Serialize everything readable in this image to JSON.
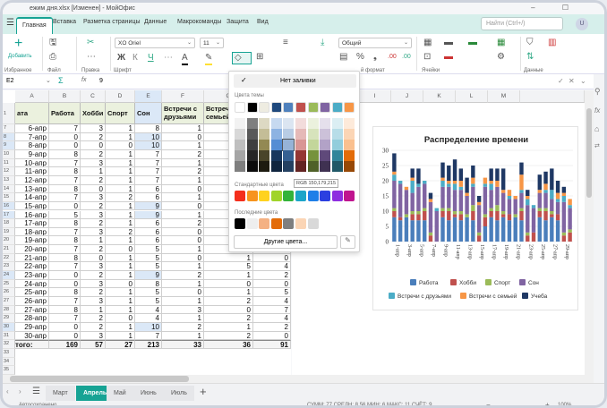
{
  "window": {
    "title": "ежим дня.xlsx [Изменен] - МойОфис",
    "controls": "– ☐"
  },
  "ribbon_tabs": [
    {
      "label": "Главная",
      "active": true
    },
    {
      "label": "Вставка"
    },
    {
      "label": "Разметка страницы"
    },
    {
      "label": "Данные"
    },
    {
      "label": "Макрокоманды"
    },
    {
      "label": "Защита"
    },
    {
      "label": "Вид"
    }
  ],
  "search": {
    "placeholder": "Найти (Ctrl+/)"
  },
  "user": {
    "initial": "U"
  },
  "ribbon": {
    "add_label": "Добавить",
    "groups": [
      "Избранное",
      "Файл",
      "Правка",
      "Шрифт",
      "й формат",
      "Ячейки",
      "Данные"
    ],
    "font_name": "XO Oriel",
    "font_size": "11",
    "number_format": "Общий",
    "bold": "Ж",
    "italic": "К",
    "underline": "Ч",
    "grow": "A⁺",
    "shrink": "A⁻"
  },
  "formula_bar": {
    "cell_ref": "E2",
    "value": "9",
    "sum_icon": "Σ",
    "fx": "fx"
  },
  "sheet": {
    "columns": [
      "A",
      "B",
      "C",
      "D",
      "E",
      "F",
      "G",
      "H"
    ],
    "right_columns": [
      "I",
      "J",
      "K",
      "L",
      "M"
    ],
    "header_row": {
      "num": "1",
      "cells": [
        "ата",
        "Работа",
        "Хобби",
        "Спорт",
        "Сон",
        "Встречи с друзьями",
        "Встречи с семьей"
      ]
    },
    "rows": [
      [
        "7",
        "6-апр",
        "7",
        "3",
        "1",
        "8",
        "1",
        null,
        null
      ],
      [
        "8",
        "7-апр",
        "0",
        "2",
        "1",
        "10",
        "0",
        null,
        null
      ],
      [
        "9",
        "8-апр",
        "0",
        "0",
        "0",
        "10",
        "1",
        null,
        null
      ],
      [
        "10",
        "9-апр",
        "8",
        "2",
        "1",
        "7",
        "2",
        null,
        null
      ],
      [
        "11",
        "10-апр",
        "7",
        "3",
        "1",
        "7",
        "1",
        null,
        null
      ],
      [
        "12",
        "11-апр",
        "8",
        "1",
        "1",
        "7",
        "2",
        null,
        null
      ],
      [
        "13",
        "12-апр",
        "7",
        "2",
        "1",
        "7",
        "1",
        null,
        null
      ],
      [
        "14",
        "13-апр",
        "8",
        "0",
        "1",
        "6",
        "0",
        null,
        null
      ],
      [
        "15",
        "14-апр",
        "7",
        "3",
        "2",
        "6",
        "1",
        null,
        null
      ],
      [
        "16",
        "15-апр",
        "0",
        "2",
        "1",
        "9",
        "0",
        null,
        null
      ],
      [
        "17",
        "16-апр",
        "5",
        "3",
        "1",
        "9",
        "1",
        null,
        null
      ],
      [
        "18",
        "17-апр",
        "8",
        "2",
        "1",
        "6",
        "2",
        null,
        null
      ],
      [
        "19",
        "18-апр",
        "7",
        "3",
        "2",
        "6",
        "0",
        null,
        null
      ],
      [
        "20",
        "19-апр",
        "8",
        "1",
        "1",
        "6",
        "0",
        null,
        null
      ],
      [
        "21",
        "20-апр",
        "7",
        "2",
        "0",
        "5",
        "1",
        null,
        null
      ],
      [
        "22",
        "21-апр",
        "8",
        "0",
        "1",
        "5",
        "0",
        "1",
        "0"
      ],
      [
        "23",
        "22-апр",
        "7",
        "3",
        "1",
        "5",
        "1",
        "5",
        "4"
      ],
      [
        "24",
        "23-апр",
        "0",
        "2",
        "1",
        "9",
        "2",
        "1",
        "2"
      ],
      [
        "25",
        "24-апр",
        "0",
        "3",
        "0",
        "8",
        "1",
        "0",
        "0"
      ],
      [
        "26",
        "25-апр",
        "8",
        "2",
        "1",
        "5",
        "0",
        "1",
        "5"
      ],
      [
        "27",
        "26-апр",
        "7",
        "3",
        "1",
        "5",
        "1",
        "2",
        "4"
      ],
      [
        "28",
        "27-апр",
        "8",
        "1",
        "1",
        "4",
        "3",
        "0",
        "7"
      ],
      [
        "29",
        "28-апр",
        "7",
        "2",
        "0",
        "4",
        "1",
        "2",
        "4"
      ],
      [
        "30",
        "29-апр",
        "0",
        "2",
        "1",
        "10",
        "2",
        "1",
        "2"
      ],
      [
        "31",
        "30-апр",
        "0",
        "3",
        "1",
        "7",
        "1",
        "2",
        "0"
      ]
    ],
    "highlighted_rows": [
      "8",
      "9",
      "16",
      "17",
      "24",
      "30"
    ],
    "total_row": [
      "32",
      "того:",
      "169",
      "57",
      "27",
      "213",
      "33",
      "36",
      "91"
    ],
    "empty_rows": [
      "33",
      "34",
      "35",
      "36"
    ],
    "tabs": [
      {
        "label": "Март"
      },
      {
        "label": "Апрель",
        "active": true
      },
      {
        "label": "Май"
      },
      {
        "label": "Июнь"
      },
      {
        "label": "Июль"
      }
    ]
  },
  "color_picker": {
    "no_fill": "Нет заливки",
    "theme_label": "Цвета темы",
    "standard_label": "Стандартные цвета",
    "recent_label": "Последние цвета",
    "more_colors": "Другие цвета...",
    "tooltip": "RGB 150,179,215",
    "theme": [
      "#ffffff",
      "#000000",
      "#eeece1",
      "#1f497d",
      "#4f81bd",
      "#c0504d",
      "#9bbb59",
      "#8064a2",
      "#4bacc6",
      "#f79646"
    ],
    "shades": [
      [
        "#f2f2f2",
        "#7f7f7f",
        "#ddd9c3",
        "#c6d9f0",
        "#dbe5f1",
        "#f2dcdb",
        "#ebf1dd",
        "#e5e0ec",
        "#dbeef3",
        "#fdeada"
      ],
      [
        "#d8d8d8",
        "#595959",
        "#c4bd97",
        "#8db3e2",
        "#b8cce4",
        "#e5b9b7",
        "#d7e3bc",
        "#ccc1d9",
        "#b7dde8",
        "#fbd5b5"
      ],
      [
        "#bfbfbf",
        "#3f3f3f",
        "#938953",
        "#548dd4",
        "#96b3d7",
        "#d99694",
        "#c3d69b",
        "#b2a2c7",
        "#92cddc",
        "#fac08f"
      ],
      [
        "#a5a5a5",
        "#262626",
        "#494429",
        "#17365d",
        "#366092",
        "#953734",
        "#76923c",
        "#5f497a",
        "#31859b",
        "#e36c09"
      ],
      [
        "#7f7f7f",
        "#0c0c0c",
        "#1d1b10",
        "#0f243e",
        "#244061",
        "#632423",
        "#4f6128",
        "#3f3151",
        "#205867",
        "#974806"
      ]
    ],
    "standard": [
      "#f42e1c",
      "#f7941d",
      "#ffd21f",
      "#a0d42a",
      "#33b33a",
      "#1ba5c9",
      "#1f7fe8",
      "#2b3fe0",
      "#8e2ee0",
      "#c0158f"
    ],
    "recent": [
      "#000000",
      "#eeeeee",
      "#f4b183",
      "#e36c09",
      "#7f7f7f",
      "#fbd5b5",
      "#d9d9d9"
    ]
  },
  "status": {
    "left": "Автосохранено",
    "stats": "СУММ: 77  СРЕДН: 8,56  МИН: 6  МАКС: 11  СЧЁТ: 9",
    "zoom": "100%"
  },
  "chart_data": {
    "type": "bar",
    "stacked": true,
    "title": "Распределение времени",
    "categories": [
      "1-апр",
      "2-апр",
      "3-апр",
      "4-апр",
      "5-апр",
      "6-апр",
      "7-апр",
      "8-апр",
      "9-апр",
      "10-апр",
      "11-апр",
      "12-апр",
      "13-апр",
      "14-апр",
      "15-апр",
      "16-апр",
      "17-апр",
      "18-апр",
      "19-апр",
      "20-апр",
      "21-апр",
      "22-апр",
      "23-апр",
      "24-апр",
      "25-апр",
      "26-апр",
      "27-апр",
      "28-апр",
      "29-апр",
      "30-апр"
    ],
    "x_tick_labels": [
      "1-апр",
      "3-апр",
      "5-апр",
      "7-апр",
      "9-апр",
      "11-апр",
      "13-апр",
      "15-апр",
      "17-апр",
      "19-апр",
      "21-апр",
      "23-апр",
      "25-апр",
      "27-апр",
      "29-апр"
    ],
    "ylim": [
      0,
      30
    ],
    "yticks": [
      0,
      5,
      10,
      15,
      20,
      25,
      30
    ],
    "grid": true,
    "legend": "bottom",
    "series": [
      {
        "name": "Работа",
        "color": "#4a7ebb",
        "values": [
          8,
          7,
          8,
          7,
          7,
          7,
          0,
          0,
          8,
          7,
          8,
          7,
          8,
          7,
          0,
          5,
          8,
          7,
          8,
          7,
          8,
          7,
          0,
          0,
          8,
          7,
          8,
          7,
          0,
          0
        ]
      },
      {
        "name": "Хобби",
        "color": "#c0504d",
        "values": [
          2,
          1,
          0,
          2,
          2,
          3,
          2,
          0,
          2,
          3,
          1,
          2,
          0,
          3,
          2,
          3,
          2,
          3,
          1,
          2,
          0,
          3,
          2,
          3,
          2,
          3,
          1,
          2,
          2,
          3
        ]
      },
      {
        "name": "Спорт",
        "color": "#9bbb59",
        "values": [
          1,
          0,
          1,
          1,
          1,
          1,
          1,
          0,
          1,
          1,
          1,
          1,
          1,
          2,
          1,
          1,
          1,
          2,
          1,
          0,
          1,
          1,
          1,
          0,
          1,
          1,
          1,
          0,
          1,
          1
        ]
      },
      {
        "name": "Сон",
        "color": "#8064a2",
        "values": [
          9,
          11,
          8,
          6,
          8,
          8,
          10,
          10,
          7,
          7,
          7,
          7,
          6,
          6,
          9,
          9,
          6,
          6,
          6,
          5,
          5,
          5,
          9,
          8,
          5,
          5,
          4,
          4,
          10,
          7
        ]
      },
      {
        "name": "Встречи с друзьями",
        "color": "#4bacc6",
        "values": [
          2,
          1,
          0,
          4,
          1,
          1,
          0,
          1,
          2,
          1,
          2,
          1,
          0,
          1,
          0,
          1,
          2,
          0,
          0,
          1,
          0,
          1,
          2,
          1,
          0,
          1,
          3,
          1,
          2,
          1
        ]
      },
      {
        "name": "Встречи с семьей",
        "color": "#f79646",
        "values": [
          1,
          0,
          1,
          1,
          0,
          0,
          1,
          0,
          1,
          1,
          1,
          2,
          1,
          2,
          1,
          2,
          1,
          2,
          1,
          2,
          1,
          5,
          1,
          0,
          1,
          2,
          0,
          2,
          1,
          2
        ]
      },
      {
        "name": "Учеба",
        "color": "#1f3864",
        "values": [
          6,
          0,
          0,
          3,
          5,
          0,
          2,
          0,
          5,
          5,
          7,
          4,
          5,
          4,
          2,
          0,
          4,
          4,
          7,
          0,
          0,
          4,
          2,
          0,
          5,
          4,
          7,
          4,
          2,
          0
        ]
      }
    ]
  }
}
